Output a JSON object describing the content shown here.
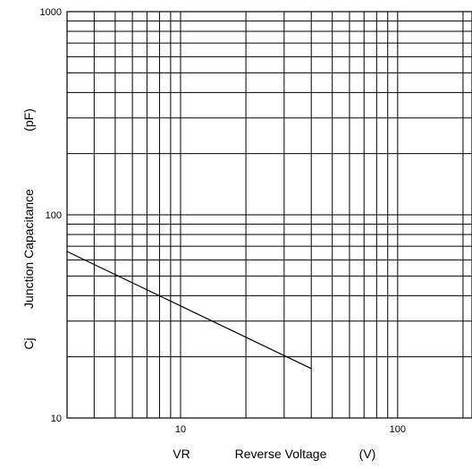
{
  "chart_data": {
    "type": "line",
    "title": "",
    "xlabel": {
      "symbol": "VR",
      "name": "Reverse Voltage",
      "unit": "(V)"
    },
    "ylabel": {
      "symbol": "Cj",
      "name": "Junction Capacitance",
      "unit": "(pF)"
    },
    "x_scale": "log",
    "y_scale": "log",
    "xlim": [
      3,
      220
    ],
    "ylim": [
      10,
      1000
    ],
    "x_tick_labels": [
      {
        "value": 10,
        "label": "10"
      },
      {
        "value": 100,
        "label": "100"
      }
    ],
    "y_tick_labels": [
      {
        "value": 10,
        "label": "10"
      },
      {
        "value": 100,
        "label": "100"
      },
      {
        "value": 1000,
        "label": "1000"
      }
    ],
    "grid": true,
    "series": [
      {
        "x": [
          3,
          40
        ],
        "y": [
          66,
          17.5
        ]
      }
    ]
  }
}
